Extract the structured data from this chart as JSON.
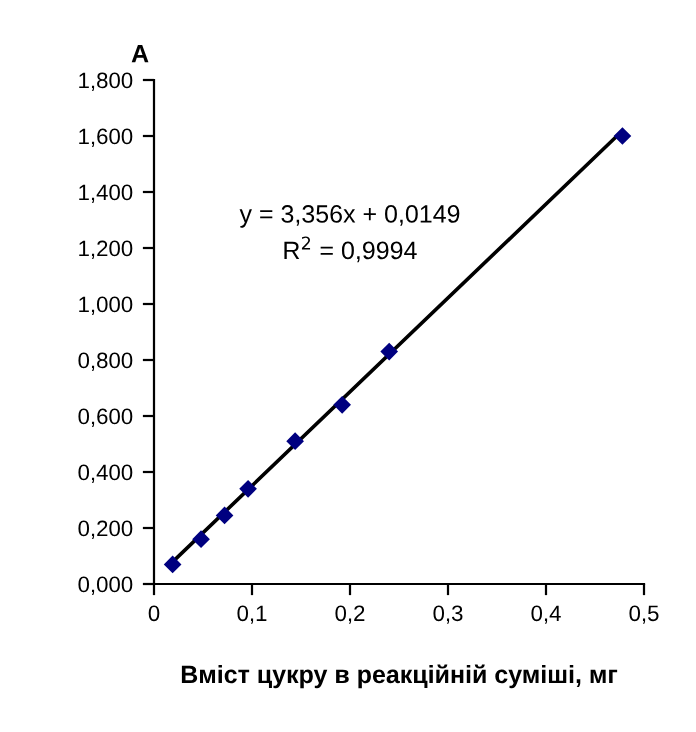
{
  "chart_data": {
    "type": "scatter",
    "ylabel": "A",
    "xlabel": "Вміст цукру в реакційній суміші, мг",
    "annotations": [
      "y = 3,356x + 0,0149",
      "R$^{2}$ = 0,9994"
    ],
    "series": [
      {
        "color": "#000080",
        "marker": "diamond",
        "x": [
          0.019,
          0.048,
          0.072,
          0.096,
          0.144,
          0.192,
          0.24,
          0.478
        ],
        "values": [
          0.07,
          0.16,
          0.245,
          0.34,
          0.51,
          0.64,
          0.83,
          1.6
        ]
      },
      {
        "type": "line",
        "color": "#000000",
        "marker": "none",
        "x": [
          0.019,
          0.478
        ],
        "values": [
          0.079,
          1.619
        ]
      }
    ],
    "xlim": [
      0,
      0.5
    ],
    "ylim": [
      0,
      1.8
    ],
    "xticks": [
      0,
      {
        "value": 0.1,
        "label": "0,1"
      },
      {
        "value": 0.2,
        "label": "0,2"
      },
      {
        "value": 0.3,
        "label": "0,3"
      },
      {
        "value": 0.4,
        "label": "0,4"
      },
      {
        "value": 0.5,
        "label": "0,5"
      }
    ],
    "yticks": [
      {
        "value": 0,
        "label": "0,000"
      },
      {
        "value": 0.2,
        "label": "0,200"
      },
      {
        "value": 0.4,
        "label": "0,400"
      },
      {
        "value": 0.6,
        "label": "0,600"
      },
      {
        "value": 0.8,
        "label": "0,800"
      },
      {
        "value": 1.0,
        "label": "1,000"
      },
      {
        "value": 1.2,
        "label": "1,200"
      },
      {
        "value": 1.4,
        "label": "1,400"
      },
      {
        "value": 1.6,
        "label": "1,600"
      },
      {
        "value": 1.8,
        "label": "1,800"
      }
    ],
    "grid": false,
    "legend": false
  }
}
